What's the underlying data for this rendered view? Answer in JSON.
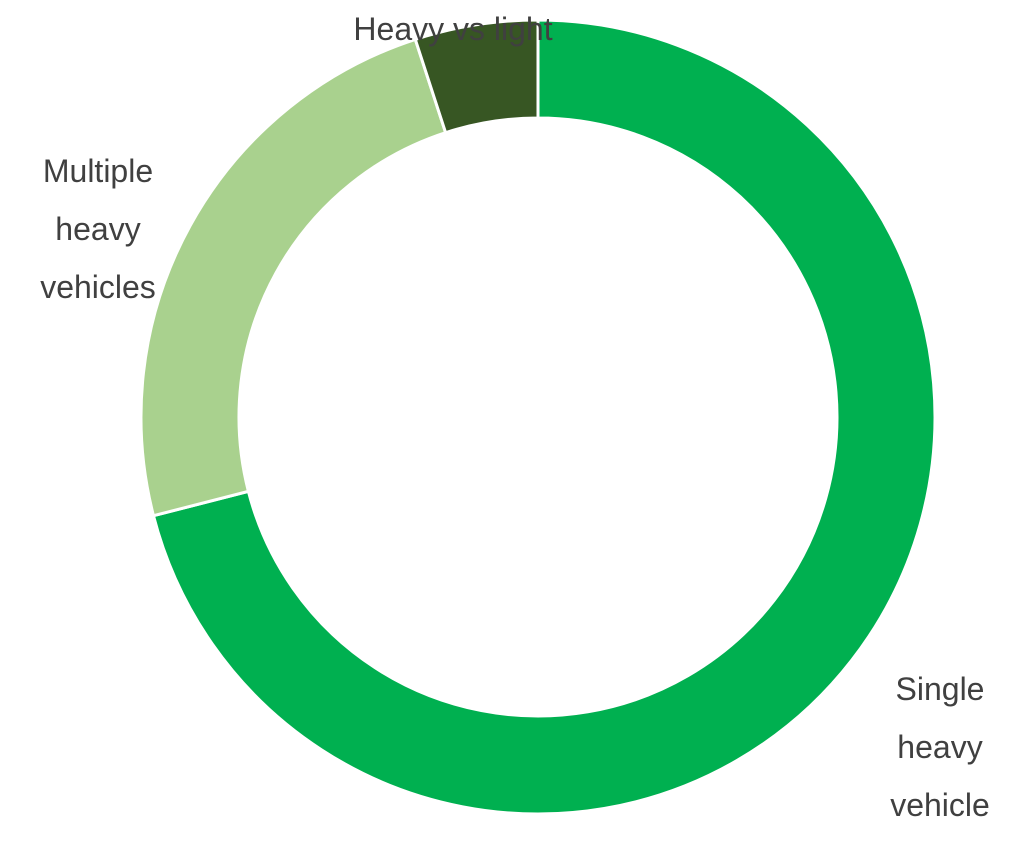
{
  "chart_data": {
    "type": "donut",
    "categories": [
      "Single heavy vehicle",
      "Multiple heavy vehicles",
      "Heavy vs light"
    ],
    "values": [
      71,
      24,
      5
    ],
    "colors": [
      "#00b050",
      "#a9d18e",
      "#375623"
    ]
  }
}
